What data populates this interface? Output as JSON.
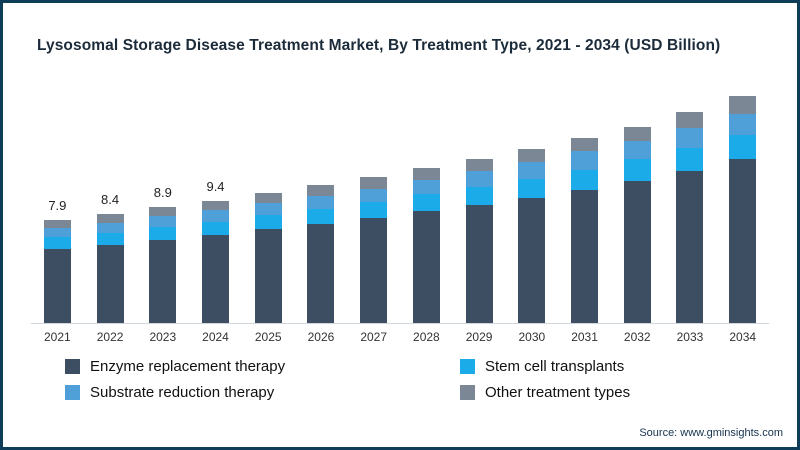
{
  "page": {
    "title": "Lysosomal Storage Disease Treatment Market, By Treatment Type, 2021 - 2034 (USD Billion)",
    "source": "Source: www.gminsights.com",
    "border_color": "#0e3d59"
  },
  "chart_data": {
    "type": "bar",
    "stacked": true,
    "title": "Lysosomal Storage Disease Treatment Market, By Treatment Type, 2021 - 2034 (USD Billion)",
    "xlabel": "",
    "ylabel": "",
    "y_axis_visible": false,
    "grid": false,
    "legend_position": "bottom",
    "ylim": [
      0,
      18
    ],
    "categories": [
      "2021",
      "2022",
      "2023",
      "2024",
      "2025",
      "2026",
      "2027",
      "2028",
      "2029",
      "2030",
      "2031",
      "2032",
      "2033",
      "2034"
    ],
    "series": [
      {
        "name": "Enzyme replacement therapy",
        "color": "#3d4e63",
        "values": [
          5.7,
          6.0,
          6.4,
          6.8,
          7.2,
          7.6,
          8.1,
          8.6,
          9.1,
          9.6,
          10.2,
          10.9,
          11.7,
          12.6
        ]
      },
      {
        "name": "Stem cell transplants",
        "color": "#1aabe8",
        "values": [
          0.9,
          0.9,
          1.0,
          1.0,
          1.1,
          1.2,
          1.2,
          1.3,
          1.4,
          1.5,
          1.6,
          1.7,
          1.8,
          1.9
        ]
      },
      {
        "name": "Substrate reduction therapy",
        "color": "#4f9fd9",
        "values": [
          0.7,
          0.8,
          0.8,
          0.9,
          0.9,
          1.0,
          1.0,
          1.1,
          1.2,
          1.3,
          1.4,
          1.4,
          1.5,
          1.6
        ]
      },
      {
        "name": "Other treatment types",
        "color": "#7b8795",
        "values": [
          0.6,
          0.7,
          0.7,
          0.7,
          0.8,
          0.8,
          0.9,
          0.9,
          0.9,
          1.0,
          1.0,
          1.1,
          1.2,
          1.4
        ]
      }
    ],
    "totals": [
      7.9,
      8.4,
      8.9,
      9.4,
      10.0,
      10.6,
      11.2,
      11.9,
      12.6,
      13.4,
      14.2,
      15.1,
      16.2,
      17.5
    ],
    "bar_total_labels": [
      "7.9",
      "8.4",
      "8.9",
      "9.4",
      "",
      "",
      "",
      "",
      "",
      "",
      "",
      "",
      "",
      ""
    ]
  }
}
